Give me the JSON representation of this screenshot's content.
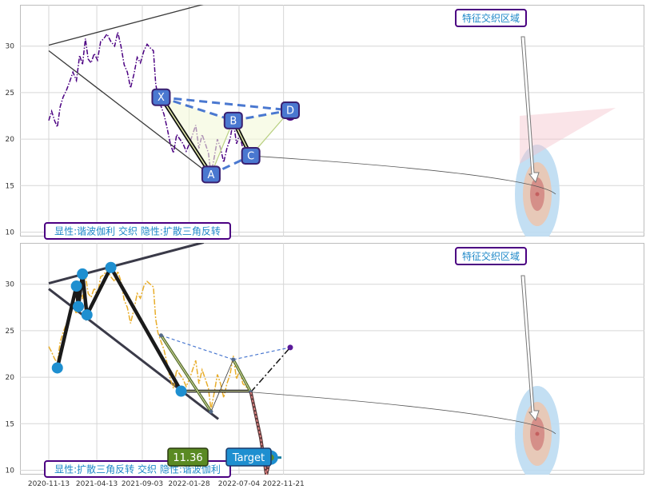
{
  "chart_data": [
    {
      "type": "line",
      "panel": "top",
      "ylim": [
        9.5,
        34
      ],
      "yticks": [
        "10",
        "15",
        "20",
        "25",
        "30"
      ],
      "grid": true,
      "series": [
        {
          "values": [
            [
              "2020-11-13",
              22.0
            ],
            [
              "2020-11-22",
              23.0
            ],
            [
              "2020-12-01",
              22.0
            ],
            [
              "2020-12-10",
              21.3
            ],
            [
              "2020-12-19",
              23.5
            ],
            [
              "2020-12-28",
              24.5
            ],
            [
              "2021-01-08",
              25.3
            ],
            [
              "2021-01-18",
              26.2
            ],
            [
              "2021-01-28",
              27.2
            ],
            [
              "2021-02-08",
              26.3
            ],
            [
              "2021-02-18",
              29.0
            ],
            [
              "2021-02-27",
              28.0
            ],
            [
              "2021-03-08",
              30.8
            ],
            [
              "2021-03-17",
              28.6
            ],
            [
              "2021-03-26",
              28.2
            ],
            [
              "2021-04-05",
              29.2
            ],
            [
              "2021-04-15",
              28.5
            ],
            [
              "2021-04-25",
              30.5
            ],
            [
              "2021-05-05",
              30.8
            ],
            [
              "2021-05-15",
              31.3
            ],
            [
              "2021-05-27",
              30.5
            ],
            [
              "2021-06-08",
              30.0
            ],
            [
              "2021-06-18",
              31.5
            ],
            [
              "2021-06-28",
              30.0
            ],
            [
              "2021-07-08",
              28.0
            ],
            [
              "2021-07-18",
              27.2
            ],
            [
              "2021-07-28",
              25.5
            ],
            [
              "2021-08-08",
              27.0
            ],
            [
              "2021-08-18",
              28.8
            ],
            [
              "2021-08-28",
              28.2
            ],
            [
              "2021-09-08",
              29.5
            ],
            [
              "2021-09-18",
              30.2
            ],
            [
              "2021-09-28",
              29.8
            ],
            [
              "2021-10-08",
              29.5
            ],
            [
              "2021-10-15",
              26.0
            ],
            [
              "2021-10-22",
              24.5
            ],
            [
              "2021-11-01",
              23.5
            ],
            [
              "2021-11-10",
              22.7
            ],
            [
              "2021-11-20",
              21.2
            ],
            [
              "2021-11-30",
              19.5
            ],
            [
              "2021-12-10",
              18.5
            ],
            [
              "2021-12-20",
              20.5
            ],
            [
              "2021-12-30",
              20.0
            ],
            [
              "2022-01-09",
              19.5
            ],
            [
              "2022-01-19",
              18.7
            ],
            [
              "2022-01-29",
              19.5
            ],
            [
              "2022-02-08",
              20.5
            ],
            [
              "2022-02-18",
              21.5
            ],
            [
              "2022-02-28",
              19.0
            ],
            [
              "2022-03-10",
              20.5
            ],
            [
              "2022-03-20",
              19.5
            ],
            [
              "2022-03-30",
              18.5
            ],
            [
              "2022-04-07",
              16.2
            ],
            [
              "2022-04-17",
              18.0
            ],
            [
              "2022-04-27",
              20.0
            ],
            [
              "2022-05-07",
              19.0
            ],
            [
              "2022-05-17",
              17.5
            ],
            [
              "2022-05-27",
              19.0
            ],
            [
              "2022-06-06",
              20.0
            ],
            [
              "2022-06-16",
              22.0
            ],
            [
              "2022-06-26",
              19.5
            ],
            [
              "2022-07-06",
              20.5
            ],
            [
              "2022-07-16",
              19.0
            ],
            [
              "2022-07-26",
              18.8
            ],
            [
              "2022-08-05",
              18.2
            ]
          ]
        }
      ],
      "guides": [
        [
          [
            "2020-11-13",
            30.1
          ],
          [
            "2022-03-15",
            34.5
          ]
        ],
        [
          [
            "2020-11-13",
            29.5
          ],
          [
            "2022-04-30",
            15.5
          ]
        ]
      ],
      "pattern_points": [
        {
          "label": "X",
          "x": "2021-11-01",
          "y": 24.5
        },
        {
          "label": "A",
          "x": "2022-04-07",
          "y": 16.2
        },
        {
          "label": "B",
          "x": "2022-06-16",
          "y": 22.0
        },
        {
          "label": "C",
          "x": "2022-08-10",
          "y": 18.2
        },
        {
          "label": "D",
          "x": "2022-12-12",
          "y": 23.1
        }
      ],
      "badge": "特征交织区域",
      "caption": "显性:谐波伽利 交织 隐性:扩散三角反转"
    },
    {
      "type": "line",
      "panel": "bottom",
      "ylim": [
        9.5,
        34
      ],
      "yticks": [
        "10",
        "15",
        "20",
        "25",
        "30"
      ],
      "xticks": [
        "2020-11-13",
        "2021-04-13",
        "2021-09-03",
        "2022-01-28",
        "2022-07-04",
        "2022-11-21"
      ],
      "grid": true,
      "series": [
        {
          "values": [
            [
              "2020-11-13",
              23.3
            ],
            [
              "2020-11-22",
              22.7
            ],
            [
              "2020-12-01",
              22.0
            ],
            [
              "2020-12-10",
              21.5
            ],
            [
              "2020-12-19",
              23.8
            ],
            [
              "2020-12-28",
              24.8
            ],
            [
              "2021-01-08",
              25.8
            ],
            [
              "2021-01-18",
              26.8
            ],
            [
              "2021-01-28",
              27.8
            ],
            [
              "2021-02-08",
              26.8
            ],
            [
              "2021-02-18",
              29.5
            ],
            [
              "2021-02-27",
              28.4
            ],
            [
              "2021-03-08",
              31.0
            ],
            [
              "2021-03-17",
              29.0
            ],
            [
              "2021-03-26",
              28.6
            ],
            [
              "2021-04-05",
              29.6
            ],
            [
              "2021-04-15",
              28.8
            ],
            [
              "2021-04-25",
              30.8
            ],
            [
              "2021-05-05",
              31.0
            ],
            [
              "2021-05-15",
              31.6
            ],
            [
              "2021-05-27",
              30.8
            ],
            [
              "2021-06-08",
              30.3
            ],
            [
              "2021-06-18",
              31.4
            ],
            [
              "2021-06-28",
              30.3
            ],
            [
              "2021-07-08",
              28.3
            ],
            [
              "2021-07-18",
              27.5
            ],
            [
              "2021-07-28",
              25.8
            ],
            [
              "2021-08-08",
              27.3
            ],
            [
              "2021-08-18",
              29.0
            ],
            [
              "2021-08-28",
              28.5
            ],
            [
              "2021-09-08",
              29.8
            ],
            [
              "2021-09-18",
              30.3
            ],
            [
              "2021-09-28",
              30.0
            ],
            [
              "2021-10-08",
              29.7
            ],
            [
              "2021-10-15",
              26.3
            ],
            [
              "2021-10-22",
              24.8
            ],
            [
              "2021-11-01",
              23.8
            ],
            [
              "2021-11-10",
              23.0
            ],
            [
              "2021-11-20",
              21.5
            ],
            [
              "2021-11-30",
              19.8
            ],
            [
              "2021-12-10",
              18.8
            ],
            [
              "2021-12-20",
              20.8
            ],
            [
              "2021-12-30",
              20.3
            ],
            [
              "2022-01-09",
              19.8
            ],
            [
              "2022-01-19",
              19.0
            ],
            [
              "2022-01-29",
              19.8
            ],
            [
              "2022-02-08",
              20.8
            ],
            [
              "2022-02-18",
              21.8
            ],
            [
              "2022-02-28",
              19.3
            ],
            [
              "2022-03-10",
              20.8
            ],
            [
              "2022-03-20",
              19.8
            ],
            [
              "2022-03-30",
              18.8
            ],
            [
              "2022-04-07",
              16.5
            ],
            [
              "2022-04-17",
              18.3
            ],
            [
              "2022-04-27",
              20.3
            ],
            [
              "2022-05-07",
              19.3
            ],
            [
              "2022-05-17",
              17.8
            ],
            [
              "2022-05-27",
              19.3
            ],
            [
              "2022-06-06",
              20.3
            ],
            [
              "2022-06-16",
              22.3
            ],
            [
              "2022-06-26",
              19.8
            ],
            [
              "2022-07-06",
              20.8
            ],
            [
              "2022-07-16",
              19.3
            ],
            [
              "2022-07-26",
              19.0
            ],
            [
              "2022-08-05",
              18.5
            ]
          ]
        }
      ],
      "guides": [
        [
          [
            "2020-11-13",
            30.1
          ],
          [
            "2022-03-15",
            34.5
          ]
        ],
        [
          [
            "2020-11-13",
            29.5
          ],
          [
            "2022-04-30",
            15.5
          ]
        ]
      ],
      "pivots": [
        [
          "2020-12-10",
          21.0
        ],
        [
          "2021-02-08",
          29.8
        ],
        [
          "2021-02-14",
          27.6
        ],
        [
          "2021-02-27",
          31.1
        ],
        [
          "2021-03-13",
          26.7
        ],
        [
          "2021-05-27",
          31.8
        ],
        [
          "2022-01-03",
          18.5
        ]
      ],
      "pattern_points": [
        {
          "x": "2021-11-01",
          "y": 24.5
        },
        {
          "x": "2022-04-07",
          "y": 16.3
        },
        {
          "x": "2022-06-16",
          "y": 21.9
        },
        {
          "x": "2022-08-10",
          "y": 18.4
        },
        {
          "x": "2022-12-12",
          "y": 23.2
        }
      ],
      "projection": [
        [
          "2022-08-10",
          18.4
        ],
        [
          "2022-09-10",
          13.5
        ],
        [
          "2022-09-28",
          9.5
        ],
        [
          "2022-10-10",
          11.4
        ]
      ],
      "target": {
        "label": "Target",
        "value": "11.36",
        "y": 11.36,
        "x": "2022-10-12"
      },
      "badge": "特征交织区域",
      "caption": "显性:扩散三角反转 交织 隐性:谐波伽利"
    }
  ],
  "colors": {
    "top_price": "#4b0082",
    "bottom_price": "#e8ad2a",
    "pattern_dash": "#4a78d0",
    "pivot": "#1e8fd0",
    "badge_border": "#4b0082",
    "badge_text": "#1e88c8",
    "target_box": "#1e8fd0",
    "value_box": "#5a8a23"
  }
}
